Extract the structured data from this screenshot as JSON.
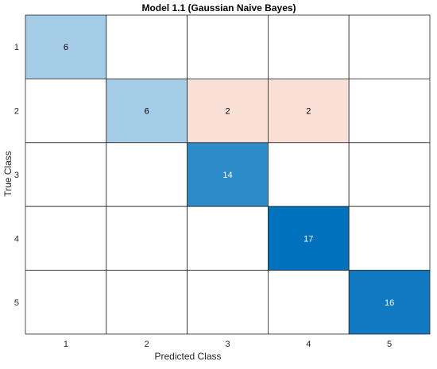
{
  "chart_data": {
    "type": "heatmap",
    "title": "Model 1.1 (Gaussian Naive Bayes)",
    "xlabel": "Predicted Class",
    "ylabel": "True Class",
    "x_categories": [
      "1",
      "2",
      "3",
      "4",
      "5"
    ],
    "y_categories": [
      "1",
      "2",
      "3",
      "4",
      "5"
    ],
    "matrix": [
      [
        6,
        0,
        0,
        0,
        0
      ],
      [
        0,
        6,
        2,
        2,
        0
      ],
      [
        0,
        0,
        14,
        0,
        0
      ],
      [
        0,
        0,
        0,
        17,
        0
      ],
      [
        0,
        0,
        0,
        0,
        16
      ]
    ],
    "colors": {
      "correct_high": "#0072bd",
      "correct_low": "#ffffff",
      "incorrect_high": "#d95319",
      "incorrect_low": "#ffffff",
      "grid": "#262626",
      "text_dark": "#000000",
      "text_light": "#ffffff"
    }
  }
}
